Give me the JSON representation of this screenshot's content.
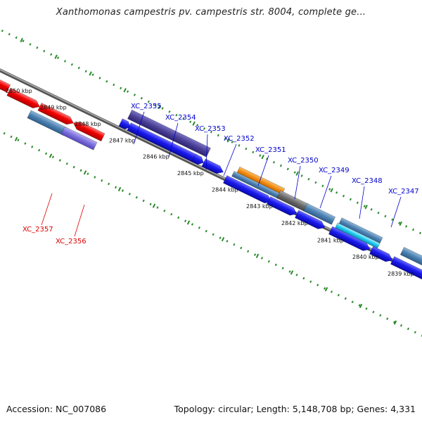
{
  "title": "Xanthomonas campestris pv. campestris str. 8004, complete ge...",
  "footer": {
    "accession": "Accession: NC_007086",
    "summary": "Topology: circular; Length: 5,148,708 bp; Genes: 4,331"
  },
  "colors": {
    "forward_label": "#0000cc",
    "reverse_label": "#dd0000",
    "forward_cds": "#1010f0",
    "reverse_cds": "#ee0000",
    "rna": "#4a7fb0",
    "backbone": "#7a7a7a",
    "tick": "#2a8a2a"
  },
  "ruler_labels": [
    "2850 kbp",
    "2849 kbp",
    "2848 kbp",
    "2847 kbp",
    "2846 kbp",
    "2845 kbp",
    "2844 kbp",
    "2843 kbp",
    "2842 kbp",
    "2841 kbp",
    "2840 kbp",
    "2839 kbp"
  ],
  "gene_labels": [
    {
      "text": "XC_2355",
      "strand": "forward"
    },
    {
      "text": "XC_2354",
      "strand": "forward"
    },
    {
      "text": "XC_2353",
      "strand": "forward"
    },
    {
      "text": "XC_2352",
      "strand": "forward"
    },
    {
      "text": "XC_2351",
      "strand": "forward"
    },
    {
      "text": "XC_2350",
      "strand": "forward"
    },
    {
      "text": "XC_2349",
      "strand": "forward"
    },
    {
      "text": "XC_2348",
      "strand": "forward"
    },
    {
      "text": "XC_2347",
      "strand": "forward"
    },
    {
      "text": "XC_2357",
      "strand": "reverse"
    },
    {
      "text": "XC_2356",
      "strand": "reverse"
    }
  ]
}
